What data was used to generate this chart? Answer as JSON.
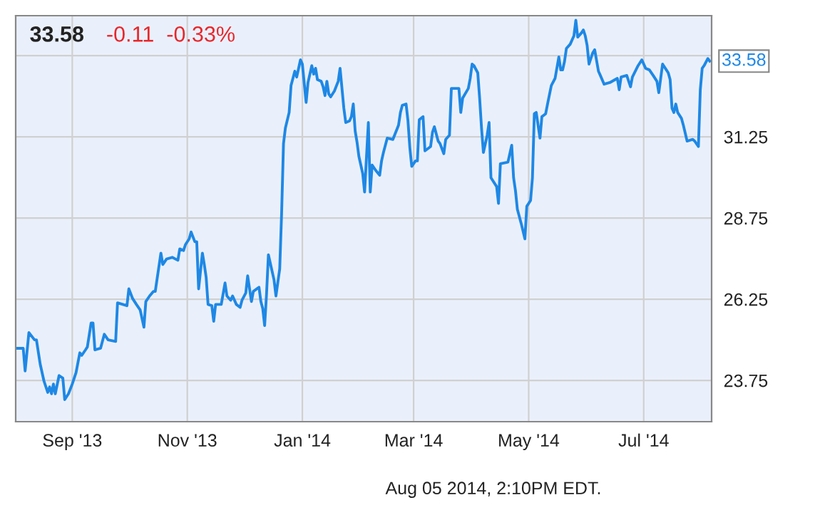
{
  "chart_data": {
    "type": "line",
    "title": "33.58",
    "subtitle": "-0.11  -0.33%",
    "annotations": [
      {
        "text": "33.58",
        "x": "2014-08-05",
        "y": 33.58
      },
      "Aug 05 2014, 2:10PM EDT."
    ],
    "xlim": [
      "2013-08-02",
      "2014-08-06"
    ],
    "xticks": [
      {
        "value": "2013-09-01",
        "label": "Sep '13"
      },
      {
        "value": "2013-11-01",
        "label": "Nov '13"
      },
      {
        "value": "2014-01-01",
        "label": "Jan '14"
      },
      {
        "value": "2014-03-01",
        "label": "Mar '14"
      },
      {
        "value": "2014-05-01",
        "label": "May '14"
      },
      {
        "value": "2014-07-01",
        "label": "Jul '14"
      }
    ],
    "ylim": [
      22.48,
      34.98
    ],
    "yticks": [
      23.75,
      26.25,
      28.75,
      31.25,
      {
        "value": 33.75,
        "label": null
      }
    ],
    "grid": true,
    "marker": "none",
    "line_style": "solid",
    "series": [
      {
        "color": "#1e88e5",
        "x": [
          "2013-08-03",
          "2013-08-06",
          "2013-08-07",
          "2013-08-09",
          "2013-08-12",
          "2013-08-13",
          "2013-08-15",
          "2013-08-17",
          "2013-08-19",
          "2013-08-20",
          "2013-08-21",
          "2013-08-22",
          "2013-08-23",
          "2013-08-25",
          "2013-08-27",
          "2013-08-28",
          "2013-08-30",
          "2013-09-01",
          "2013-09-03",
          "2013-09-05",
          "2013-09-06",
          "2013-09-08",
          "2013-09-09",
          "2013-09-11",
          "2013-09-12",
          "2013-09-13",
          "2013-09-16",
          "2013-09-18",
          "2013-09-20",
          "2013-09-24",
          "2013-09-25",
          "2013-09-30",
          "2013-10-01",
          "2013-10-03",
          "2013-10-05",
          "2013-10-07",
          "2013-10-09",
          "2013-10-10",
          "2013-10-12",
          "2013-10-14",
          "2013-10-15",
          "2013-10-18",
          "2013-10-19",
          "2013-10-21",
          "2013-10-24",
          "2013-10-27",
          "2013-10-28",
          "2013-10-30",
          "2013-10-31",
          "2013-11-02",
          "2013-11-03",
          "2013-11-05",
          "2013-11-06",
          "2013-11-07",
          "2013-11-09",
          "2013-11-10",
          "2013-11-11",
          "2013-11-12",
          "2013-11-14",
          "2013-11-15",
          "2013-11-16",
          "2013-11-19",
          "2013-11-21",
          "2013-11-22",
          "2013-11-24",
          "2013-11-25",
          "2013-11-27",
          "2013-11-29",
          "2013-11-30",
          "2013-12-02",
          "2013-12-03",
          "2013-12-05",
          "2013-12-06",
          "2013-12-09",
          "2013-12-10",
          "2013-12-11",
          "2013-12-12",
          "2013-12-13",
          "2013-12-14",
          "2013-12-15",
          "2013-12-17",
          "2013-12-18",
          "2013-12-20",
          "2013-12-21",
          "2013-12-22",
          "2013-12-23",
          "2013-12-25",
          "2013-12-26",
          "2013-12-28",
          "2013-12-29",
          "2013-12-31",
          "2014-01-01",
          "2014-01-03",
          "2014-01-04",
          "2014-01-06",
          "2014-01-07",
          "2014-01-08",
          "2014-01-09",
          "2014-01-11",
          "2014-01-12",
          "2014-01-13",
          "2014-01-14",
          "2014-01-15",
          "2014-01-16",
          "2014-01-18",
          "2014-01-20",
          "2014-01-21",
          "2014-01-23",
          "2014-01-24",
          "2014-01-26",
          "2014-01-27",
          "2014-01-28",
          "2014-01-29",
          "2014-01-30",
          "2014-01-31",
          "2014-02-02",
          "2014-02-03",
          "2014-02-05",
          "2014-02-06",
          "2014-02-07",
          "2014-02-09",
          "2014-02-11",
          "2014-02-12",
          "2014-02-13",
          "2014-02-15",
          "2014-02-18",
          "2014-02-21",
          "2014-02-22",
          "2014-02-23",
          "2014-02-25",
          "2014-02-26",
          "2014-02-27",
          "2014-02-28",
          "2014-03-02",
          "2014-03-03",
          "2014-03-04",
          "2014-03-06",
          "2014-03-07",
          "2014-03-10",
          "2014-03-11",
          "2014-03-12",
          "2014-03-14",
          "2014-03-15",
          "2014-03-17",
          "2014-03-18",
          "2014-03-20",
          "2014-03-21",
          "2014-03-25",
          "2014-03-26",
          "2014-03-27",
          "2014-03-30",
          "2014-03-31",
          "2014-04-01",
          "2014-04-02",
          "2014-04-04",
          "2014-04-05",
          "2014-04-06",
          "2014-04-07",
          "2014-04-09",
          "2014-04-10",
          "2014-04-11",
          "2014-04-14",
          "2014-04-15",
          "2014-04-16",
          "2014-04-20",
          "2014-04-22",
          "2014-04-23",
          "2014-04-24",
          "2014-04-25",
          "2014-04-27",
          "2014-04-29",
          "2014-04-30",
          "2014-05-02",
          "2014-05-03",
          "2014-05-04",
          "2014-05-05",
          "2014-05-07",
          "2014-05-08",
          "2014-05-10",
          "2014-05-11",
          "2014-05-13",
          "2014-05-15",
          "2014-05-17",
          "2014-05-18",
          "2014-05-19",
          "2014-05-20",
          "2014-05-21",
          "2014-05-23",
          "2014-05-25",
          "2014-05-26",
          "2014-05-27",
          "2014-05-29",
          "2014-05-30",
          "2014-05-31",
          "2014-06-01",
          "2014-06-02",
          "2014-06-04",
          "2014-06-05",
          "2014-06-07",
          "2014-06-08",
          "2014-06-10",
          "2014-06-13",
          "2014-06-17",
          "2014-06-18",
          "2014-06-19",
          "2014-06-22",
          "2014-06-24",
          "2014-06-25",
          "2014-06-28",
          "2014-06-30",
          "2014-07-02",
          "2014-07-04",
          "2014-07-06",
          "2014-07-08",
          "2014-07-09",
          "2014-07-10",
          "2014-07-11",
          "2014-07-13",
          "2014-07-14",
          "2014-07-15",
          "2014-07-16",
          "2014-07-17",
          "2014-07-18",
          "2014-07-19",
          "2014-07-21",
          "2014-07-22",
          "2014-07-24",
          "2014-07-27",
          "2014-07-28",
          "2014-07-30",
          "2014-07-31",
          "2014-08-01",
          "2014-08-02",
          "2014-08-04",
          "2014-08-05"
        ],
        "values": [
          24.74,
          24.74,
          24.04,
          25.22,
          25.0,
          25.0,
          24.25,
          23.73,
          23.38,
          23.55,
          23.34,
          23.64,
          23.34,
          23.9,
          23.82,
          23.16,
          23.34,
          23.64,
          23.99,
          24.6,
          24.52,
          24.69,
          24.78,
          25.52,
          25.52,
          24.69,
          24.74,
          25.17,
          25.0,
          24.95,
          26.14,
          26.05,
          26.57,
          26.27,
          26.09,
          25.92,
          25.39,
          26.18,
          26.35,
          26.49,
          26.49,
          27.67,
          27.32,
          27.49,
          27.54,
          27.45,
          27.8,
          27.75,
          27.93,
          28.11,
          28.32,
          28.02,
          28.02,
          26.57,
          27.67,
          27.32,
          26.92,
          26.09,
          26.05,
          25.57,
          26.09,
          26.09,
          26.75,
          26.35,
          26.22,
          26.35,
          26.09,
          26.0,
          26.22,
          26.44,
          26.97,
          26.18,
          26.49,
          26.62,
          26.18,
          25.96,
          25.44,
          26.4,
          27.62,
          27.36,
          26.84,
          26.35,
          27.19,
          28.89,
          31.04,
          31.52,
          32.0,
          32.83,
          33.27,
          33.09,
          33.62,
          33.49,
          32.31,
          32.92,
          33.44,
          33.18,
          33.36,
          33.01,
          32.96,
          32.79,
          32.52,
          32.96,
          32.57,
          32.48,
          32.66,
          32.96,
          33.36,
          32.13,
          31.69,
          31.74,
          31.87,
          32.26,
          31.43,
          31.08,
          30.64,
          30.12,
          29.55,
          31.69,
          29.55,
          30.38,
          30.21,
          30.07,
          30.51,
          30.77,
          31.21,
          31.17,
          31.61,
          32.0,
          32.22,
          32.26,
          31.74,
          30.91,
          30.34,
          30.51,
          30.51,
          31.78,
          31.87,
          30.82,
          30.95,
          31.39,
          31.56,
          31.12,
          31.04,
          30.73,
          31.17,
          31.3,
          32.74,
          32.74,
          32.0,
          32.44,
          32.74,
          33.05,
          33.49,
          33.44,
          33.22,
          32.44,
          31.52,
          30.77,
          31.3,
          31.69,
          29.99,
          29.72,
          29.2,
          30.42,
          30.47,
          30.99,
          29.99,
          29.59,
          29.02,
          28.59,
          28.11,
          29.11,
          29.29,
          29.99,
          31.96,
          32.0,
          31.21,
          31.87,
          31.96,
          32.26,
          32.83,
          33.05,
          33.71,
          33.31,
          33.31,
          33.57,
          33.97,
          34.1,
          34.36,
          34.84,
          34.32,
          34.45,
          34.54,
          34.36,
          34.06,
          33.49,
          33.84,
          33.93,
          33.27,
          33.14,
          32.87,
          32.92,
          33.05,
          32.7,
          33.09,
          33.14,
          32.79,
          33.09,
          33.44,
          33.62,
          33.36,
          33.31,
          33.14,
          32.96,
          32.61,
          33.05,
          33.49,
          33.31,
          33.22,
          33.01,
          32.13,
          32.0,
          32.26,
          32.0,
          31.82,
          31.61,
          31.12,
          31.17,
          31.12,
          30.95,
          32.7,
          33.36,
          33.44,
          33.66,
          33.58
        ]
      }
    ]
  }
}
